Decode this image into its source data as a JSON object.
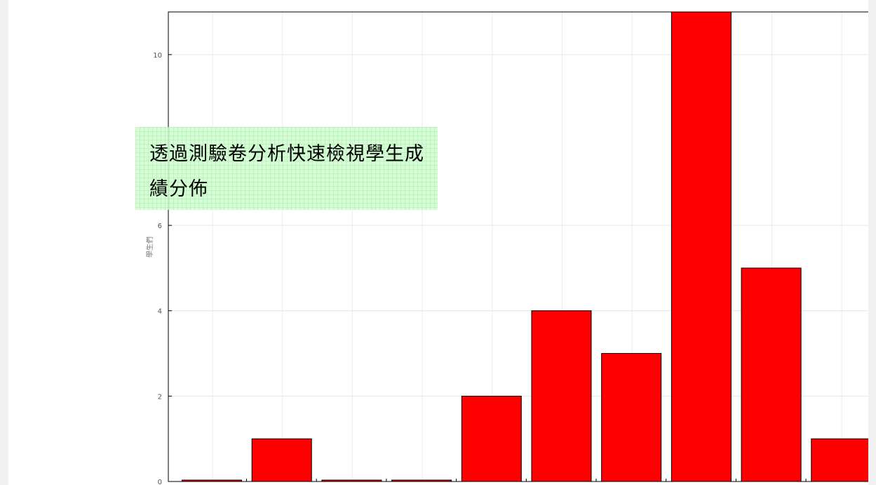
{
  "chart_data": {
    "type": "bar",
    "title": "",
    "xlabel": "",
    "ylabel": "學生們",
    "ylim": [
      0,
      11
    ],
    "yticks": [
      0,
      2,
      4,
      6,
      10
    ],
    "grid": true,
    "bar_color": "#ff0000",
    "values": [
      0,
      1,
      0,
      0,
      2,
      4,
      3,
      11,
      5,
      1
    ]
  },
  "callout": {
    "text": "透過測驗卷分析快速檢視學生成績分佈",
    "background": "#ccffcc"
  }
}
